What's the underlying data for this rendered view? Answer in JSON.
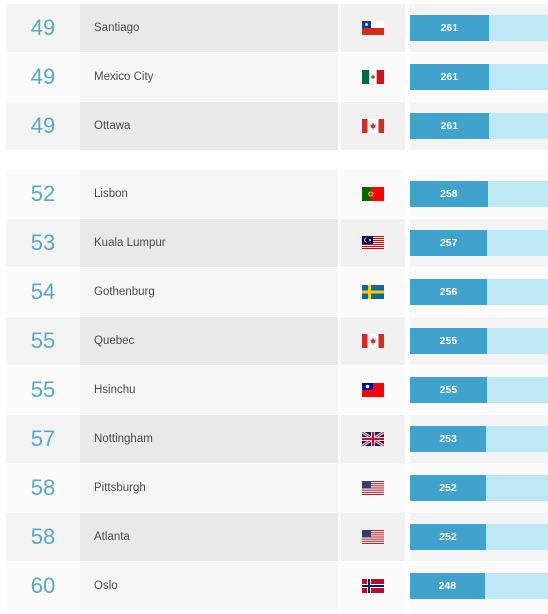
{
  "rows": [
    {
      "rank": "49",
      "city": "Santiago",
      "flag": "chile-flag-icon",
      "score": "261",
      "score_value": 261
    },
    {
      "rank": "49",
      "city": "Mexico City",
      "flag": "mexico-flag-icon",
      "score": "261",
      "score_value": 261
    },
    {
      "rank": "49",
      "city": "Ottawa",
      "flag": "canada-flag-icon",
      "score": "261",
      "score_value": 261
    },
    {
      "rank": "52",
      "city": "Lisbon",
      "flag": "portugal-flag-icon",
      "score": "258",
      "score_value": 258
    },
    {
      "rank": "53",
      "city": "Kuala Lumpur",
      "flag": "malaysia-flag-icon",
      "score": "257",
      "score_value": 257
    },
    {
      "rank": "54",
      "city": "Gothenburg",
      "flag": "sweden-flag-icon",
      "score": "256",
      "score_value": 256
    },
    {
      "rank": "55",
      "city": "Quebec",
      "flag": "canada-flag-icon",
      "score": "255",
      "score_value": 255
    },
    {
      "rank": "55",
      "city": "Hsinchu",
      "flag": "taiwan-flag-icon",
      "score": "255",
      "score_value": 255
    },
    {
      "rank": "57",
      "city": "Nottingham",
      "flag": "uk-flag-icon",
      "score": "253",
      "score_value": 253
    },
    {
      "rank": "58",
      "city": "Pittsburgh",
      "flag": "usa-flag-icon",
      "score": "252",
      "score_value": 252
    },
    {
      "rank": "58",
      "city": "Atlanta",
      "flag": "usa-flag-icon",
      "score": "252",
      "score_value": 252
    },
    {
      "rank": "60",
      "city": "Oslo",
      "flag": "norway-flag-icon",
      "score": "248",
      "score_value": 248
    }
  ],
  "colors": {
    "rank_text": "#5aa7c9",
    "bar_fill": "#3fa3cd",
    "bar_track": "#bfe8f6"
  }
}
